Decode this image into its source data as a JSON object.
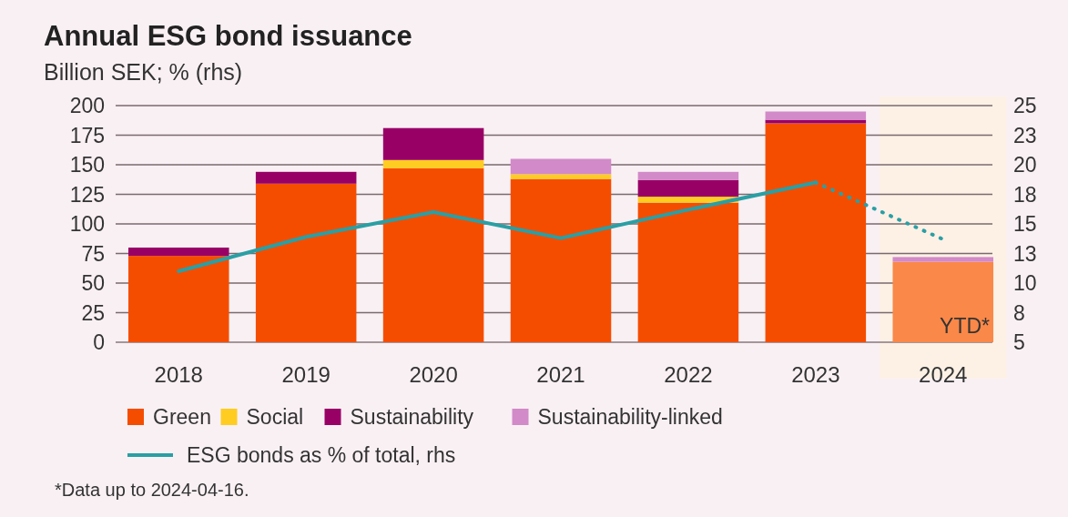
{
  "chart_data": {
    "type": "bar",
    "title": "Annual ESG bond issuance",
    "subtitle": "Billion SEK; % (rhs)",
    "categories": [
      "2018",
      "2019",
      "2020",
      "2021",
      "2022",
      "2023",
      "2024"
    ],
    "stacked": true,
    "series": [
      {
        "name": "Green",
        "color": "#f54d00",
        "colors": [
          "#f54d00",
          "#f54d00",
          "#f54d00",
          "#f54d00",
          "#f54d00",
          "#f54d00",
          "#fa8848"
        ],
        "values": [
          73,
          134,
          147,
          138,
          118,
          185,
          68
        ]
      },
      {
        "name": "Social",
        "color": "#ffcc22",
        "values": [
          0,
          0,
          7,
          4,
          5,
          0,
          0
        ]
      },
      {
        "name": "Sustainability",
        "color": "#990066",
        "values": [
          7,
          10,
          27,
          0,
          14,
          3,
          0
        ]
      },
      {
        "name": "Sustainability-linked",
        "color": "#d28ac8",
        "values": [
          0,
          0,
          0,
          13,
          7,
          7,
          4
        ]
      },
      {
        "name": "ESG bonds as % of total, rhs",
        "type": "line",
        "axis": "y2",
        "color": "#2a9fa4",
        "line_style": "solid",
        "values": [
          11.0,
          13.9,
          16.0,
          13.8,
          16.2,
          18.5,
          null
        ]
      },
      {
        "type": "line",
        "axis": "y2",
        "color": "#2a9fa4",
        "line_style": "dotted",
        "values": [
          null,
          null,
          null,
          null,
          null,
          18.5,
          13.7
        ]
      }
    ],
    "ylim": [
      0,
      200
    ],
    "yticks": [
      0,
      25,
      50,
      75,
      100,
      125,
      150,
      175,
      200
    ],
    "y2lim": [
      5,
      25
    ],
    "y2ticks": [
      5,
      {
        "value": 7.5,
        "label": "8"
      },
      10,
      {
        "value": 12.5,
        "label": "13"
      },
      15,
      {
        "value": 17.5,
        "label": "18"
      },
      20,
      {
        "value": 22.5,
        "label": "23"
      },
      25
    ],
    "grid": "y",
    "legend": "bottom",
    "bands": [
      {
        "axis": "x",
        "from": "2024",
        "to": "2024",
        "color": "#fdf1e6"
      }
    ],
    "annotations": [
      "YTD*",
      "*Data up to 2024-04-16."
    ]
  }
}
